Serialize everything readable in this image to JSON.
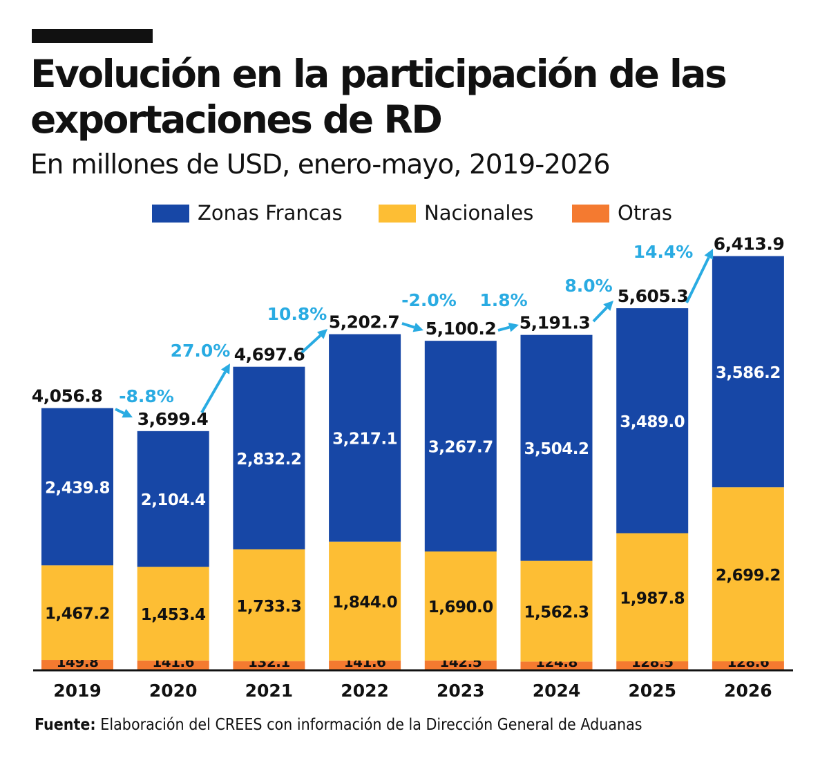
{
  "title": "Evolución en la participación de las exportaciones de RD",
  "subtitle": "En millones de USD, enero-mayo, 2019-2026",
  "source": {
    "label": "Fuente:",
    "text": "Elaboración del CREES con información de la Dirección General de Aduanas"
  },
  "colors": {
    "zonas_francas": "#1747a6",
    "nacionales": "#fdbe34",
    "otras": "#f47a30",
    "growth": "#29abe2",
    "text": "#111111",
    "axis": "#111111"
  },
  "chart_data": {
    "type": "bar",
    "stacked": true,
    "categories": [
      "2019",
      "2020",
      "2021",
      "2022",
      "2023",
      "2024",
      "2025",
      "2026"
    ],
    "series": [
      {
        "name": "Otras",
        "values": [
          149.8,
          141.6,
          132.1,
          141.6,
          142.5,
          124.8,
          128.5,
          128.6
        ],
        "labels": [
          "149.8",
          "141.6",
          "132.1",
          "141.6",
          "142.5",
          "124.8",
          "128.5",
          "128.6"
        ],
        "color": "#f47a30"
      },
      {
        "name": "Nacionales",
        "values": [
          1467.2,
          1453.4,
          1733.3,
          1844.0,
          1690.0,
          1562.3,
          1987.8,
          2699.2
        ],
        "labels": [
          "1,467.2",
          "1,453.4",
          "1,733.3",
          "1,844.0",
          "1,690.0",
          "1,562.3",
          "1,987.8",
          "2,699.2"
        ],
        "color": "#fdbe34"
      },
      {
        "name": "Zonas Francas",
        "values": [
          2439.8,
          2104.4,
          2832.2,
          3217.1,
          3267.7,
          3504.2,
          3489.0,
          3586.2
        ],
        "labels": [
          "2,439.8",
          "2,104.4",
          "2,832.2",
          "3,217.1",
          "3,267.7",
          "3,504.2",
          "3,489.0",
          "3,586.2"
        ],
        "color": "#1747a6"
      }
    ],
    "totals": [
      4056.8,
      3699.4,
      4697.6,
      5202.7,
      5100.2,
      5191.3,
      5605.3,
      6413.9
    ],
    "total_labels": [
      "4,056.8",
      "3,699.4",
      "4,697.6",
      "5,202.7",
      "5,100.2",
      "5,191.3",
      "5,605.3",
      "6,413.9"
    ],
    "growth_labels": [
      "-8.8%",
      "27.0%",
      "10.8%",
      "-2.0%",
      "1.8%",
      "8.0%",
      "14.4%"
    ],
    "legend": [
      "Zonas Francas",
      "Nacionales",
      "Otras"
    ],
    "legend_position": "top-center",
    "ylim": [
      0,
      6500
    ],
    "grid": false,
    "xlabel": "",
    "ylabel": ""
  }
}
